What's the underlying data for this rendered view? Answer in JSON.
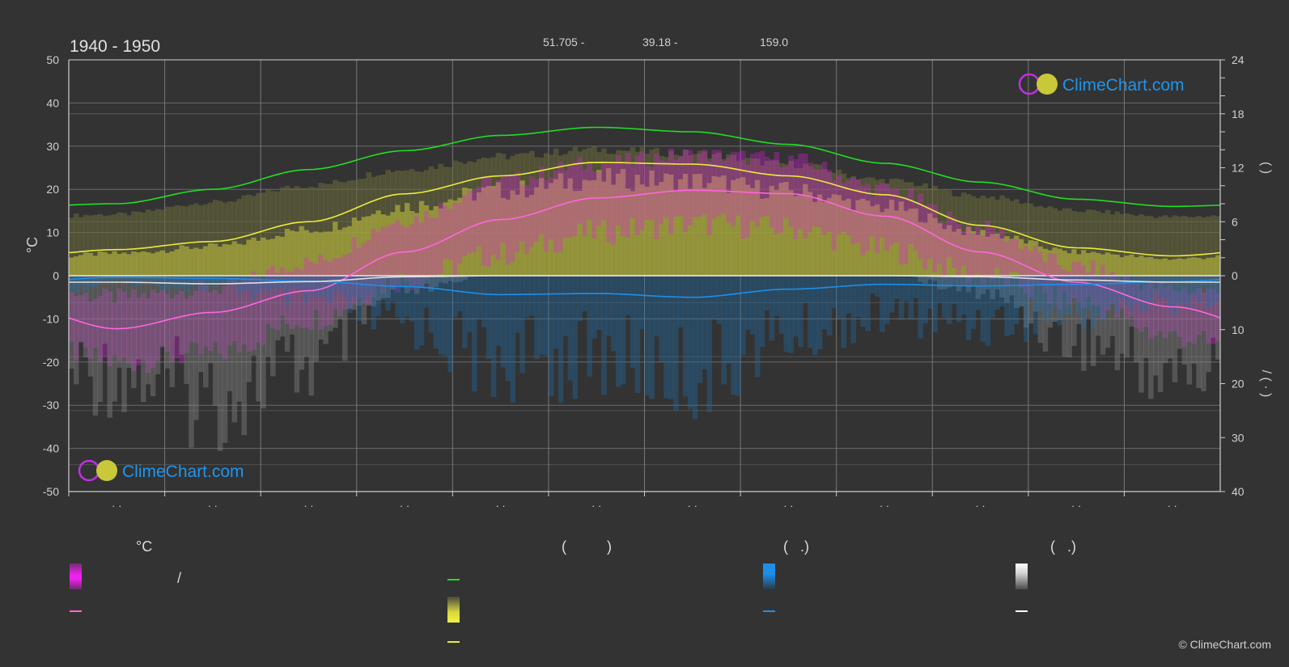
{
  "header": {
    "period": "1940 - 1950",
    "latitude": "51.705 -",
    "longitude": "39.18 -",
    "elevation": "159.0"
  },
  "brand": {
    "logo_text": "ClimeChart.com",
    "copyright": "© ClimeChart.com"
  },
  "legend": {
    "temp_head": "°C",
    "sun_head": "(          )",
    "rain_head": "(   .)",
    "snow_head": "(   .)",
    "temp_range_sep": "/"
  },
  "colors": {
    "background": "#333333",
    "daylight": "#22dd22",
    "sunshine": "#ecec3a",
    "temp_mean": "#ff66dd",
    "temp_range": "#e020e0",
    "rain": "#1e8fe8",
    "snow": "#ffffff",
    "grid": "#6a6a6a",
    "logo": "#1f95ee"
  },
  "chart_data": {
    "type": "line",
    "x_ticks": [
      "· ·",
      "· ·",
      "· ·",
      "· ·",
      "· ·",
      "· ·",
      "· ·",
      "· ·",
      "· ·",
      "· ·",
      "· ·",
      "· ·"
    ],
    "y_left": {
      "label": "°C",
      "ylim": [
        -50,
        50
      ],
      "ticks": [
        50,
        40,
        30,
        20,
        10,
        0,
        -10,
        -20,
        -30,
        -40,
        -50
      ]
    },
    "y_right_top": {
      "label": "(   )",
      "ylim": [
        0,
        24
      ],
      "ticks": [
        24,
        18,
        12,
        6,
        0
      ]
    },
    "y_right_bottom": {
      "label": "/    (   ·   )",
      "ylim": [
        0,
        40
      ],
      "ticks": [
        0,
        10,
        20,
        30,
        40
      ]
    },
    "grid": true,
    "series": [
      {
        "key": "daylight_hours",
        "axis": "right_top",
        "values": [
          8.0,
          9.6,
          11.8,
          13.9,
          15.6,
          16.5,
          16.0,
          14.6,
          12.5,
          10.4,
          8.5,
          7.7
        ]
      },
      {
        "key": "sunshine_hours",
        "axis": "right_top",
        "values": [
          2.9,
          3.8,
          6.0,
          9.1,
          11.1,
          12.6,
          12.4,
          11.1,
          9.0,
          5.6,
          3.1,
          2.2
        ]
      },
      {
        "key": "temp_mean",
        "axis": "left",
        "values": [
          -12.3,
          -8.5,
          -3.5,
          5.5,
          13.0,
          18.0,
          19.8,
          19.0,
          13.8,
          5.5,
          -1.5,
          -7.2
        ]
      },
      {
        "key": "rain_daily",
        "axis": "right_bottom",
        "values": [
          0.3,
          0.5,
          1.0,
          2.0,
          3.5,
          3.3,
          4.0,
          2.5,
          1.6,
          1.9,
          1.6,
          1.1
        ]
      },
      {
        "key": "snow_daily",
        "axis": "right_bottom",
        "values": [
          1.2,
          1.5,
          1.1,
          0.2,
          0,
          0,
          0,
          0,
          0,
          0.2,
          0.8,
          1.2
        ]
      }
    ],
    "temp_range": {
      "max": [
        -5,
        -3,
        3,
        13,
        22,
        26,
        28,
        27,
        20,
        11,
        2,
        -3
      ],
      "min": [
        -20,
        -18,
        -10,
        -1,
        5,
        10,
        12,
        11,
        6,
        0,
        -6,
        -14
      ]
    }
  }
}
